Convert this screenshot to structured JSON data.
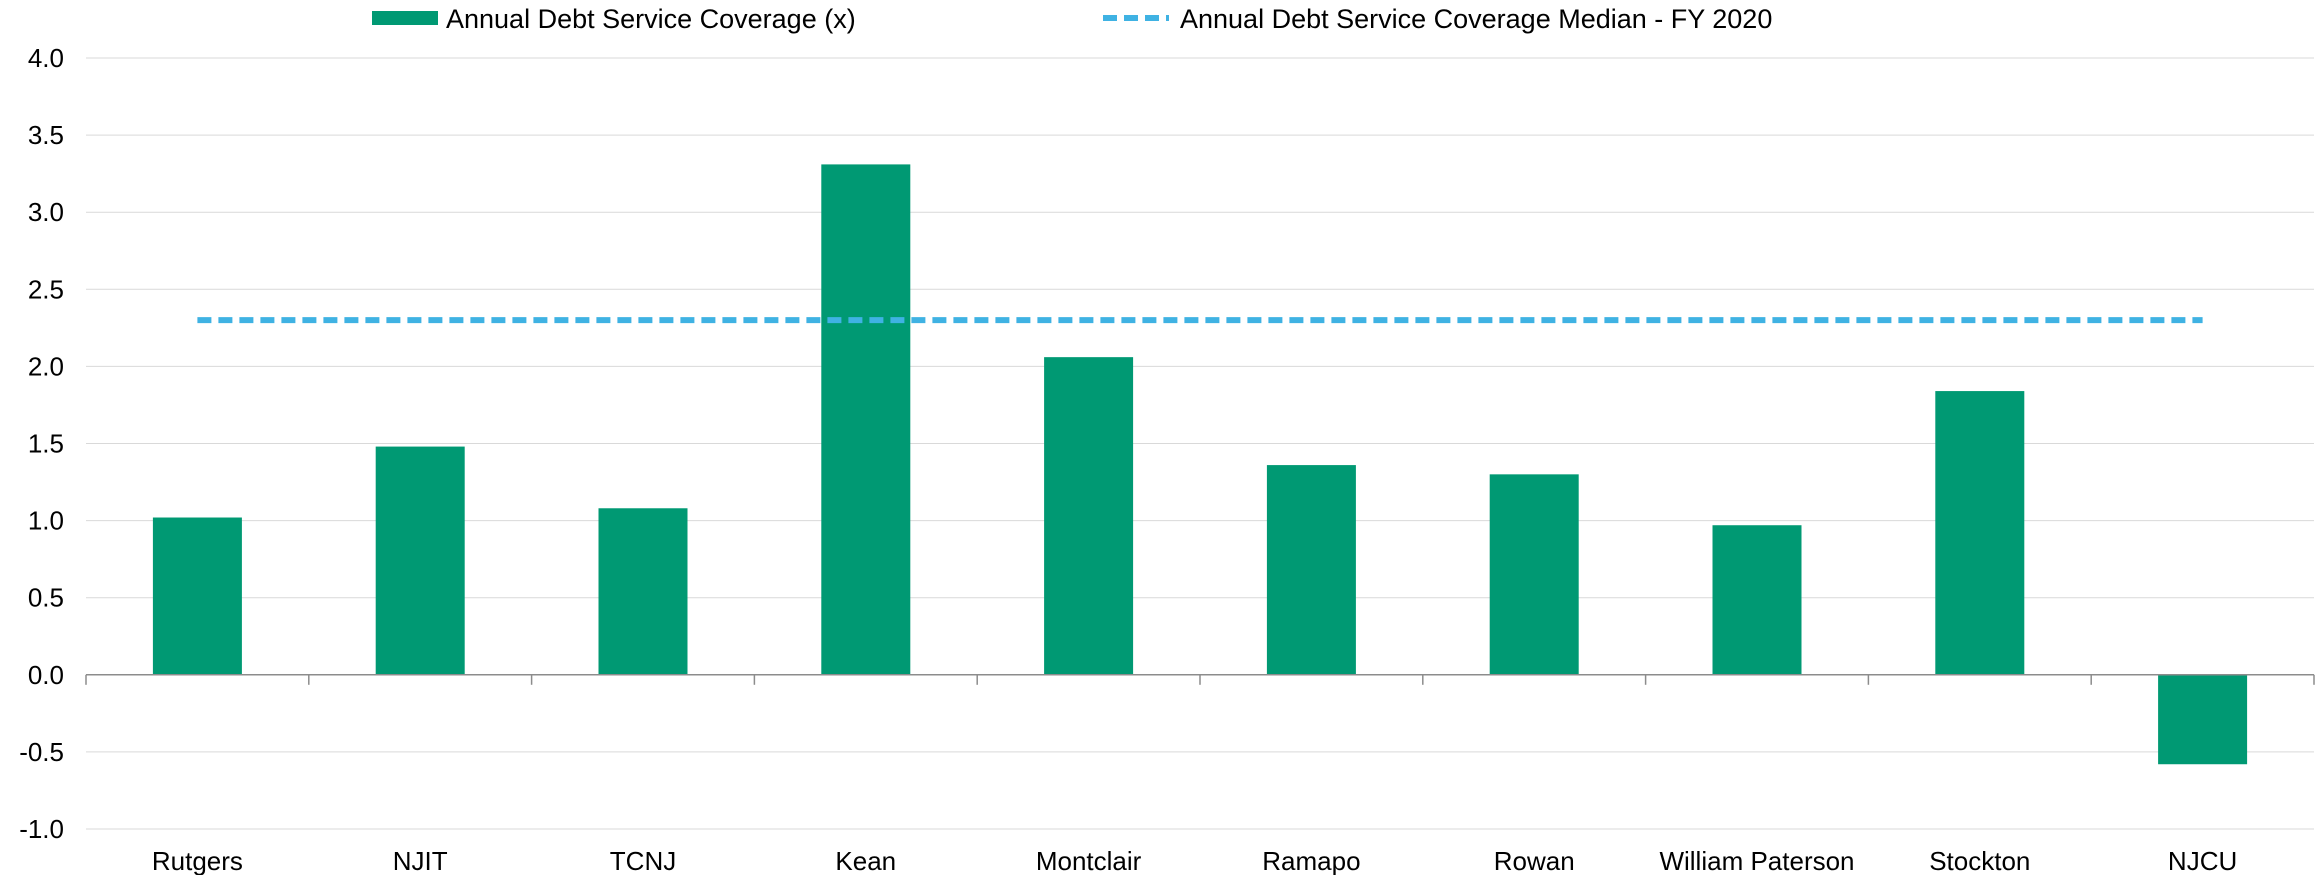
{
  "chart_data": {
    "type": "bar",
    "title": "",
    "xlabel": "",
    "ylabel": "",
    "categories": [
      "Rutgers",
      "NJIT",
      "TCNJ",
      "Kean",
      "Montclair",
      "Ramapo",
      "Rowan",
      "William Paterson",
      "Stockton",
      "NJCU"
    ],
    "series": [
      {
        "name": "Annual Debt Service Coverage (x)",
        "type": "bar",
        "color": "#009973",
        "values": [
          1.02,
          1.48,
          1.08,
          3.31,
          2.06,
          1.36,
          1.3,
          0.97,
          1.84,
          -0.58
        ]
      },
      {
        "name": "Annual Debt Service Coverage Median - FY 2020",
        "type": "line",
        "style": "dashed",
        "color": "#3fb2e3",
        "value": 2.3
      }
    ],
    "ylim": [
      -1.0,
      4.0
    ],
    "yticks": [
      "4.0",
      "3.5",
      "3.0",
      "2.5",
      "2.0",
      "1.5",
      "1.0",
      "0.5",
      "0.0",
      "-0.5",
      "-1.0"
    ],
    "grid": true,
    "legend_position": "top"
  }
}
